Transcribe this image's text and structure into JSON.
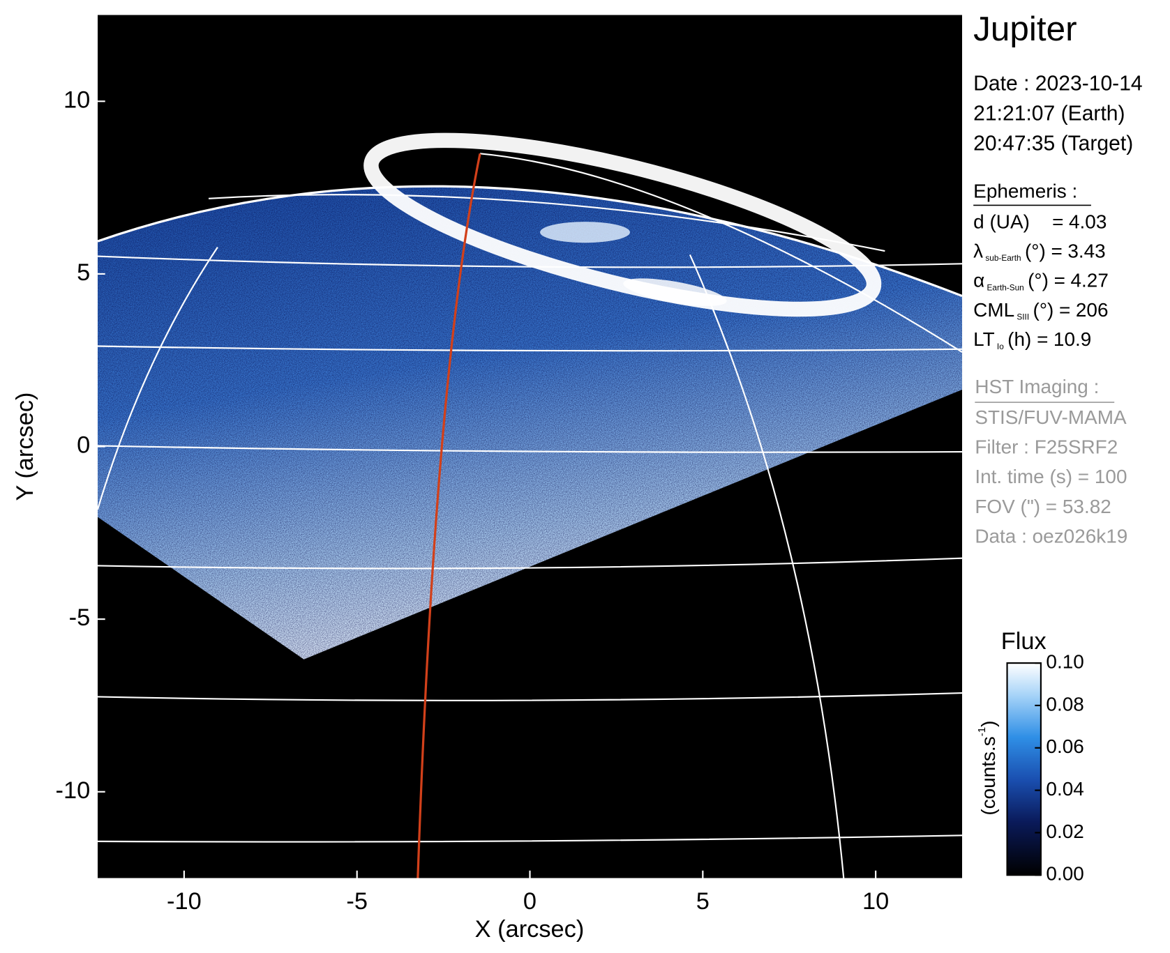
{
  "chart_data": {
    "type": "image",
    "title": "Jupiter",
    "xlabel": "X (arcsec)",
    "ylabel": "Y (arcsec)",
    "xlim": [
      -12.5,
      12.5
    ],
    "ylim": [
      -12.5,
      12.5
    ],
    "xticks": [
      -10,
      -5,
      0,
      5,
      10
    ],
    "yticks": [
      -10,
      -5,
      0,
      5,
      10
    ],
    "date_lines": [
      "Date : 2023-10-14",
      "21:21:07 (Earth)",
      "20:47:35 (Target)"
    ],
    "ephemeris": {
      "heading": "Ephemeris :",
      "rows": [
        {
          "label": "d (UA)",
          "rest": "=",
          "value": 4.03
        },
        {
          "label": "λ",
          "sub": "sub-Earth",
          "rest": "(°) =",
          "value": 3.43
        },
        {
          "label": "α",
          "sub": "Earth-Sun",
          "rest": "(°) =",
          "value": 4.27
        },
        {
          "label": "CML",
          "sub": "SIII",
          "rest": "(°) =",
          "value": 206
        },
        {
          "label": "LT",
          "sub": "Io",
          "rest": "(h) =",
          "value": 10.9
        }
      ]
    },
    "imaging": {
      "heading": "HST Imaging :",
      "lines": [
        "STIS/FUV-MAMA",
        "Filter : F25SRF2",
        "Int. time (s) = 100",
        "FOV (\") = 53.82",
        "Data : oez026k19"
      ]
    },
    "colorbar": {
      "title": "Flux",
      "unit": {
        "text": "(counts.s",
        "sup": "-1",
        "end": ")"
      },
      "clim": [
        0,
        0.1
      ],
      "ticks": [
        {
          "value": 0,
          "label": "0.00"
        },
        {
          "value": 0.02,
          "label": "0.02"
        },
        {
          "value": 0.04,
          "label": "0.04"
        },
        {
          "value": 0.06,
          "label": "0.06"
        },
        {
          "value": 0.08,
          "label": "0.08"
        },
        {
          "value": 0.1,
          "label": "0.10"
        }
      ]
    }
  }
}
